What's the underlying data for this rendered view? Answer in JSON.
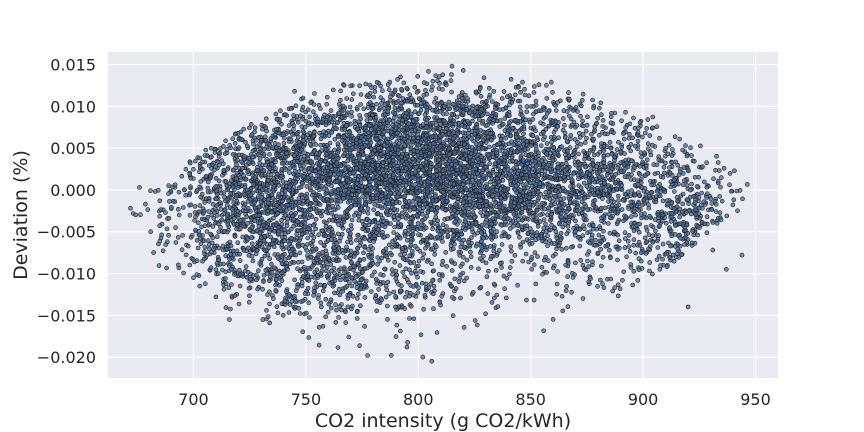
{
  "chart_data": {
    "type": "scatter",
    "title": "",
    "xlabel": "CO2 intensity (g CO2/kWh)",
    "ylabel": "Deviation (%)",
    "xlim": [
      662,
      960
    ],
    "ylim": [
      -0.0225,
      0.0165
    ],
    "xticks": [
      700,
      750,
      800,
      850,
      900,
      950
    ],
    "xtick_labels": [
      "700",
      "750",
      "800",
      "850",
      "900",
      "950"
    ],
    "yticks": [
      -0.02,
      -0.015,
      -0.01,
      -0.005,
      0.0,
      0.005,
      0.01,
      0.015
    ],
    "ytick_labels": [
      "−0.020",
      "−0.015",
      "−0.010",
      "−0.005",
      "0.000",
      "0.005",
      "0.010",
      "0.015"
    ],
    "grid": true,
    "legend": "none",
    "n_points": 7000,
    "point_color": "#4a6d9c",
    "point_edge_color": "#1c1c1c",
    "background_color": "#eaeaf2",
    "points": [
      {
        "x": 672,
        "y": -0.0022
      },
      {
        "x": 676,
        "y": 0.0003
      },
      {
        "x": 681,
        "y": -0.005
      },
      {
        "x": 689,
        "y": 0.0005
      },
      {
        "x": 700,
        "y": -0.0105
      },
      {
        "x": 710,
        "y": -0.0128
      },
      {
        "x": 716,
        "y": -0.0155
      },
      {
        "x": 745,
        "y": 0.0118
      },
      {
        "x": 767,
        "y": 0.0125
      },
      {
        "x": 788,
        "y": -0.0198
      },
      {
        "x": 795,
        "y": -0.0188
      },
      {
        "x": 802,
        "y": -0.02
      },
      {
        "x": 806,
        "y": -0.0205
      },
      {
        "x": 815,
        "y": 0.0148
      },
      {
        "x": 820,
        "y": 0.0143
      },
      {
        "x": 857,
        "y": 0.0125
      },
      {
        "x": 878,
        "y": 0.0098
      },
      {
        "x": 903,
        "y": 0.0065
      },
      {
        "x": 920,
        "y": -0.014
      },
      {
        "x": 931,
        "y": -0.0072
      },
      {
        "x": 942,
        "y": -0.0025
      },
      {
        "x": 944,
        "y": -0.0078
      },
      {
        "x": 937,
        "y": -0.0095
      }
    ]
  }
}
